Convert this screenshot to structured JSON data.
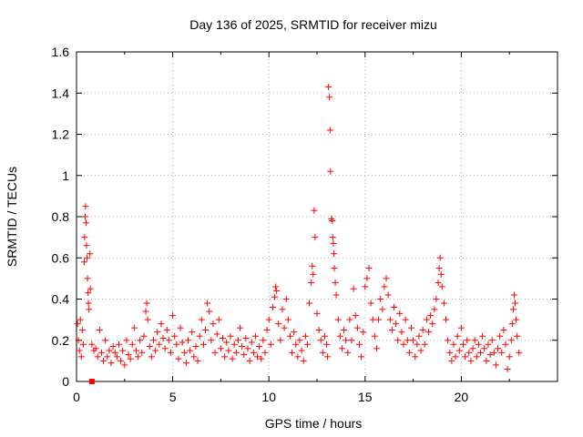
{
  "chart_data": {
    "type": "scatter",
    "title": "Day 136 of 2025, SRMTID for receiver mizu",
    "xlabel": "GPS time / hours",
    "ylabel": "SRMTID / TECUs",
    "xlim": [
      0,
      25
    ],
    "ylim": [
      0,
      1.6
    ],
    "xticks": [
      0,
      5,
      10,
      15,
      20
    ],
    "yticks": [
      0,
      0.2,
      0.4,
      0.6,
      0.8,
      1,
      1.2,
      1.4,
      1.6
    ],
    "ytick_labels": [
      "0",
      "0.2",
      "0.4",
      "0.6",
      "0.8",
      "1",
      "1.2",
      "1.4",
      "1.6"
    ],
    "grid": true,
    "marker": "+",
    "color": "#ff0000",
    "series": [
      {
        "name": "SRMTID",
        "points": [
          [
            0.05,
            0.28
          ],
          [
            0.1,
            0.2
          ],
          [
            0.15,
            0.15
          ],
          [
            0.2,
            0.3
          ],
          [
            0.25,
            0.12
          ],
          [
            0.3,
            0.25
          ],
          [
            0.35,
            0.18
          ],
          [
            0.4,
            0.58
          ],
          [
            0.42,
            0.7
          ],
          [
            0.45,
            0.8
          ],
          [
            0.47,
            0.85
          ],
          [
            0.5,
            0.77
          ],
          [
            0.52,
            0.66
          ],
          [
            0.55,
            0.6
          ],
          [
            0.57,
            0.5
          ],
          [
            0.6,
            0.43
          ],
          [
            0.62,
            0.38
          ],
          [
            0.65,
            0.35
          ],
          [
            0.7,
            0.62
          ],
          [
            0.72,
            0.45
          ],
          [
            0.8,
            0.18
          ],
          [
            0.9,
            0.15
          ],
          [
            1.0,
            0.16
          ],
          [
            1.1,
            0.12
          ],
          [
            1.2,
            0.25
          ],
          [
            1.3,
            0.14
          ],
          [
            1.4,
            0.1
          ],
          [
            1.5,
            0.2
          ],
          [
            1.6,
            0.12
          ],
          [
            1.7,
            0.15
          ],
          [
            1.8,
            0.09
          ],
          [
            1.9,
            0.17
          ],
          [
            2.0,
            0.14
          ],
          [
            2.1,
            0.12
          ],
          [
            2.2,
            0.18
          ],
          [
            2.3,
            0.1
          ],
          [
            2.4,
            0.15
          ],
          [
            2.5,
            0.08
          ],
          [
            2.6,
            0.2
          ],
          [
            2.7,
            0.13
          ],
          [
            2.8,
            0.11
          ],
          [
            2.9,
            0.18
          ],
          [
            3.0,
            0.26
          ],
          [
            3.1,
            0.15
          ],
          [
            3.2,
            0.12
          ],
          [
            3.3,
            0.2
          ],
          [
            3.4,
            0.14
          ],
          [
            3.5,
            0.22
          ],
          [
            3.6,
            0.34
          ],
          [
            3.65,
            0.38
          ],
          [
            3.7,
            0.3
          ],
          [
            3.8,
            0.17
          ],
          [
            3.9,
            0.12
          ],
          [
            4.0,
            0.2
          ],
          [
            4.1,
            0.15
          ],
          [
            4.2,
            0.24
          ],
          [
            4.3,
            0.18
          ],
          [
            4.4,
            0.28
          ],
          [
            4.5,
            0.21
          ],
          [
            4.6,
            0.16
          ],
          [
            4.7,
            0.25
          ],
          [
            4.8,
            0.2
          ],
          [
            4.9,
            0.14
          ],
          [
            5.0,
            0.32
          ],
          [
            5.1,
            0.22
          ],
          [
            5.2,
            0.18
          ],
          [
            5.3,
            0.11
          ],
          [
            5.4,
            0.26
          ],
          [
            5.5,
            0.19
          ],
          [
            5.6,
            0.14
          ],
          [
            5.7,
            0.09
          ],
          [
            5.8,
            0.2
          ],
          [
            5.9,
            0.15
          ],
          [
            6.0,
            0.24
          ],
          [
            6.1,
            0.12
          ],
          [
            6.2,
            0.17
          ],
          [
            6.3,
            0.1
          ],
          [
            6.4,
            0.22
          ],
          [
            6.5,
            0.3
          ],
          [
            6.6,
            0.18
          ],
          [
            6.7,
            0.25
          ],
          [
            6.8,
            0.38
          ],
          [
            6.9,
            0.34
          ],
          [
            7.0,
            0.2
          ],
          [
            7.1,
            0.28
          ],
          [
            7.2,
            0.14
          ],
          [
            7.3,
            0.23
          ],
          [
            7.4,
            0.3
          ],
          [
            7.5,
            0.16
          ],
          [
            7.6,
            0.21
          ],
          [
            7.7,
            0.12
          ],
          [
            7.8,
            0.19
          ],
          [
            7.9,
            0.15
          ],
          [
            8.0,
            0.22
          ],
          [
            8.1,
            0.11
          ],
          [
            8.2,
            0.18
          ],
          [
            8.3,
            0.14
          ],
          [
            8.4,
            0.2
          ],
          [
            8.5,
            0.26
          ],
          [
            8.6,
            0.17
          ],
          [
            8.7,
            0.13
          ],
          [
            8.8,
            0.21
          ],
          [
            8.9,
            0.16
          ],
          [
            9.0,
            0.1
          ],
          [
            9.1,
            0.19
          ],
          [
            9.2,
            0.14
          ],
          [
            9.3,
            0.22
          ],
          [
            9.4,
            0.12
          ],
          [
            9.5,
            0.17
          ],
          [
            9.6,
            0.11
          ],
          [
            9.7,
            0.2
          ],
          [
            9.8,
            0.14
          ],
          [
            9.9,
            0.25
          ],
          [
            10.0,
            0.3
          ],
          [
            10.1,
            0.18
          ],
          [
            10.2,
            0.36
          ],
          [
            10.3,
            0.41
          ],
          [
            10.35,
            0.46
          ],
          [
            10.4,
            0.44
          ],
          [
            10.5,
            0.28
          ],
          [
            10.6,
            0.2
          ],
          [
            10.7,
            0.35
          ],
          [
            10.8,
            0.26
          ],
          [
            10.9,
            0.4
          ],
          [
            11.0,
            0.3
          ],
          [
            11.1,
            0.22
          ],
          [
            11.2,
            0.14
          ],
          [
            11.3,
            0.24
          ],
          [
            11.4,
            0.18
          ],
          [
            11.5,
            0.12
          ],
          [
            11.6,
            0.2
          ],
          [
            11.7,
            0.15
          ],
          [
            11.8,
            0.1
          ],
          [
            11.9,
            0.22
          ],
          [
            12.0,
            0.18
          ],
          [
            12.1,
            0.38
          ],
          [
            12.2,
            0.48
          ],
          [
            12.25,
            0.56
          ],
          [
            12.3,
            0.52
          ],
          [
            12.35,
            0.83
          ],
          [
            12.4,
            0.7
          ],
          [
            12.5,
            0.33
          ],
          [
            12.6,
            0.25
          ],
          [
            12.7,
            0.2
          ],
          [
            12.8,
            0.14
          ],
          [
            12.9,
            0.22
          ],
          [
            13.0,
            0.18
          ],
          [
            13.05,
            0.12
          ],
          [
            13.1,
            1.43
          ],
          [
            13.15,
            1.38
          ],
          [
            13.18,
            1.22
          ],
          [
            13.2,
            1.02
          ],
          [
            13.25,
            0.79
          ],
          [
            13.3,
            0.78
          ],
          [
            13.32,
            0.7
          ],
          [
            13.35,
            0.67
          ],
          [
            13.38,
            0.62
          ],
          [
            13.4,
            0.55
          ],
          [
            13.45,
            0.48
          ],
          [
            13.5,
            0.42
          ],
          [
            13.6,
            0.3
          ],
          [
            13.7,
            0.22
          ],
          [
            13.8,
            0.16
          ],
          [
            13.9,
            0.25
          ],
          [
            14.0,
            0.2
          ],
          [
            14.1,
            0.14
          ],
          [
            14.2,
            0.3
          ],
          [
            14.3,
            0.2
          ],
          [
            14.4,
            0.45
          ],
          [
            14.5,
            0.32
          ],
          [
            14.6,
            0.26
          ],
          [
            14.7,
            0.18
          ],
          [
            14.8,
            0.12
          ],
          [
            14.9,
            0.24
          ],
          [
            15.0,
            0.46
          ],
          [
            15.1,
            0.5
          ],
          [
            15.2,
            0.55
          ],
          [
            15.3,
            0.38
          ],
          [
            15.4,
            0.3
          ],
          [
            15.5,
            0.22
          ],
          [
            15.6,
            0.16
          ],
          [
            15.7,
            0.3
          ],
          [
            15.8,
            0.4
          ],
          [
            15.9,
            0.35
          ],
          [
            16.0,
            0.46
          ],
          [
            16.1,
            0.5
          ],
          [
            16.2,
            0.42
          ],
          [
            16.3,
            0.3
          ],
          [
            16.4,
            0.25
          ],
          [
            16.5,
            0.36
          ],
          [
            16.6,
            0.28
          ],
          [
            16.7,
            0.2
          ],
          [
            16.8,
            0.33
          ],
          [
            16.9,
            0.24
          ],
          [
            17.0,
            0.18
          ],
          [
            17.1,
            0.3
          ],
          [
            17.2,
            0.2
          ],
          [
            17.3,
            0.14
          ],
          [
            17.4,
            0.26
          ],
          [
            17.5,
            0.2
          ],
          [
            17.6,
            0.12
          ],
          [
            17.7,
            0.18
          ],
          [
            17.8,
            0.22
          ],
          [
            17.9,
            0.15
          ],
          [
            18.0,
            0.25
          ],
          [
            18.1,
            0.18
          ],
          [
            18.2,
            0.3
          ],
          [
            18.3,
            0.24
          ],
          [
            18.4,
            0.32
          ],
          [
            18.5,
            0.28
          ],
          [
            18.6,
            0.35
          ],
          [
            18.7,
            0.4
          ],
          [
            18.8,
            0.48
          ],
          [
            18.85,
            0.55
          ],
          [
            18.9,
            0.6
          ],
          [
            18.95,
            0.52
          ],
          [
            19.0,
            0.46
          ],
          [
            19.1,
            0.38
          ],
          [
            19.2,
            0.3
          ],
          [
            19.3,
            0.2
          ],
          [
            19.4,
            0.14
          ],
          [
            19.5,
            0.1
          ],
          [
            19.6,
            0.18
          ],
          [
            19.7,
            0.12
          ],
          [
            19.8,
            0.22
          ],
          [
            19.9,
            0.15
          ],
          [
            20.0,
            0.26
          ],
          [
            20.1,
            0.18
          ],
          [
            20.2,
            0.12
          ],
          [
            20.3,
            0.2
          ],
          [
            20.4,
            0.14
          ],
          [
            20.5,
            0.1
          ],
          [
            20.6,
            0.16
          ],
          [
            20.7,
            0.2
          ],
          [
            20.8,
            0.12
          ],
          [
            20.9,
            0.18
          ],
          [
            21.0,
            0.14
          ],
          [
            21.1,
            0.22
          ],
          [
            21.2,
            0.16
          ],
          [
            21.3,
            0.1
          ],
          [
            21.4,
            0.18
          ],
          [
            21.5,
            0.13
          ],
          [
            21.6,
            0.2
          ],
          [
            21.7,
            0.14
          ],
          [
            21.8,
            0.08
          ],
          [
            21.9,
            0.16
          ],
          [
            22.0,
            0.22
          ],
          [
            22.1,
            0.14
          ],
          [
            22.2,
            0.25
          ],
          [
            22.3,
            0.18
          ],
          [
            22.4,
            0.06
          ],
          [
            22.5,
            0.12
          ],
          [
            22.6,
            0.2
          ],
          [
            22.65,
            0.28
          ],
          [
            22.7,
            0.35
          ],
          [
            22.75,
            0.42
          ],
          [
            22.8,
            0.38
          ],
          [
            22.85,
            0.3
          ],
          [
            22.9,
            0.22
          ],
          [
            23.0,
            0.14
          ]
        ]
      },
      {
        "name": "marker-square",
        "points": [
          [
            0.8,
            0.0
          ]
        ]
      }
    ]
  }
}
